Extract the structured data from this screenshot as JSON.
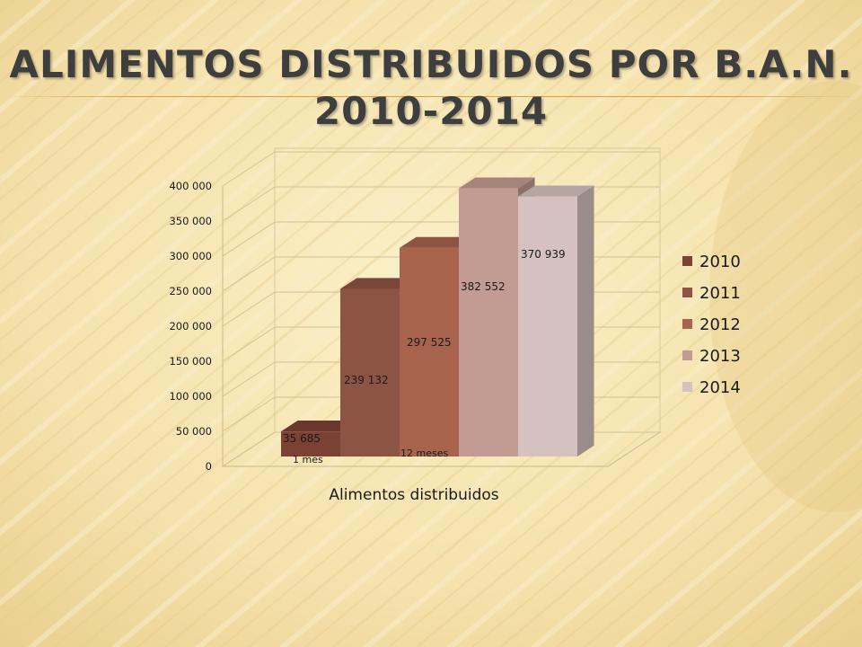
{
  "slide": {
    "title_line1": "ALIMENTOS DISTRIBUIDOS POR B.A.N.",
    "title_line2": "2010-2014"
  },
  "chart_data": {
    "type": "bar",
    "title": "ALIMENTOS DISTRIBUIDOS POR B.A.N. 2010-2014",
    "categories": [
      "Alimentos distribuidos"
    ],
    "xlabel": "Alimentos distribuidos",
    "ylabel": "",
    "ylim": [
      0,
      400000
    ],
    "yticks": [
      0,
      50000,
      100000,
      150000,
      200000,
      250000,
      300000,
      350000,
      400000
    ],
    "ytick_labels": [
      "0",
      "50 000",
      "100 000",
      "150 000",
      "200 000",
      "250 000",
      "300 000",
      "350 000",
      "400 000"
    ],
    "series": [
      {
        "name": "2010",
        "values": [
          35685
        ],
        "label": "35 685",
        "color": "#7b4133"
      },
      {
        "name": "2011",
        "values": [
          239132
        ],
        "label": "239 132",
        "color": "#8e5443"
      },
      {
        "name": "2012",
        "values": [
          297525
        ],
        "label": "297 525",
        "color": "#a7634c"
      },
      {
        "name": "2013",
        "values": [
          382552
        ],
        "label": "382 552",
        "color": "#c29b92"
      },
      {
        "name": "2014",
        "values": [
          370939
        ],
        "label": "370 939",
        "color": "#d5c2c0"
      }
    ],
    "annotations": [
      {
        "text": "1 mes",
        "series": "2010"
      },
      {
        "text": "12 meses",
        "series": "2012"
      }
    ],
    "grid": true,
    "legend": "right",
    "style": "3d"
  }
}
